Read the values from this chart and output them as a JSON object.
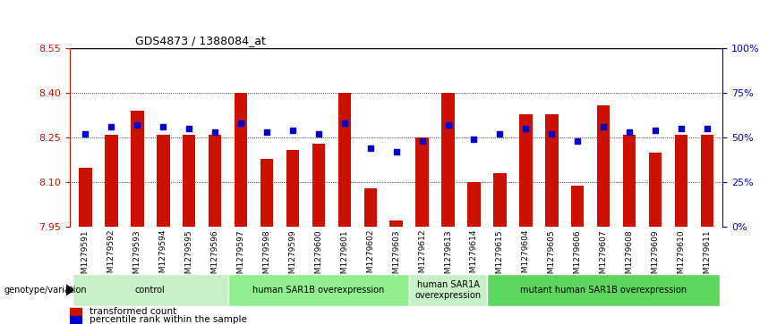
{
  "title": "GDS4873 / 1388084_at",
  "samples": [
    "GSM1279591",
    "GSM1279592",
    "GSM1279593",
    "GSM1279594",
    "GSM1279595",
    "GSM1279596",
    "GSM1279597",
    "GSM1279598",
    "GSM1279599",
    "GSM1279600",
    "GSM1279601",
    "GSM1279602",
    "GSM1279603",
    "GSM1279612",
    "GSM1279613",
    "GSM1279614",
    "GSM1279615",
    "GSM1279604",
    "GSM1279605",
    "GSM1279606",
    "GSM1279607",
    "GSM1279608",
    "GSM1279609",
    "GSM1279610",
    "GSM1279611"
  ],
  "red_values": [
    8.15,
    8.26,
    8.34,
    8.26,
    8.26,
    8.26,
    8.4,
    8.18,
    8.21,
    8.23,
    8.4,
    8.08,
    7.97,
    8.25,
    8.4,
    8.1,
    8.13,
    8.33,
    8.33,
    8.09,
    8.36,
    8.26,
    8.2,
    8.26,
    8.26
  ],
  "blue_values": [
    52,
    56,
    57,
    56,
    55,
    53,
    58,
    53,
    54,
    52,
    58,
    44,
    42,
    48,
    57,
    49,
    52,
    55,
    52,
    48,
    56,
    53,
    54,
    55,
    55
  ],
  "ymin": 7.95,
  "ymax": 8.55,
  "yticks": [
    7.95,
    8.1,
    8.25,
    8.4,
    8.55
  ],
  "right_yticks": [
    0,
    25,
    50,
    75,
    100
  ],
  "right_yticklabels": [
    "0%",
    "25%",
    "50%",
    "75%",
    "100%"
  ],
  "groups": [
    {
      "label": "control",
      "start": 0,
      "end": 5,
      "color": "#c8f0c8"
    },
    {
      "label": "human SAR1B overexpression",
      "start": 6,
      "end": 12,
      "color": "#90ee90"
    },
    {
      "label": "human SAR1A\noverexpression",
      "start": 13,
      "end": 15,
      "color": "#c8f0c8"
    },
    {
      "label": "mutant human SAR1B overexpression",
      "start": 16,
      "end": 24,
      "color": "#5cd65c"
    }
  ],
  "bar_color": "#cc1100",
  "dot_color": "#0000cc",
  "bg_color": "#ffffff",
  "plot_bg_color": "#ffffff",
  "label_row_color": "#c0c0c0",
  "grid_color": "#000000",
  "legend_label1": "transformed count",
  "legend_label2": "percentile rank within the sample"
}
